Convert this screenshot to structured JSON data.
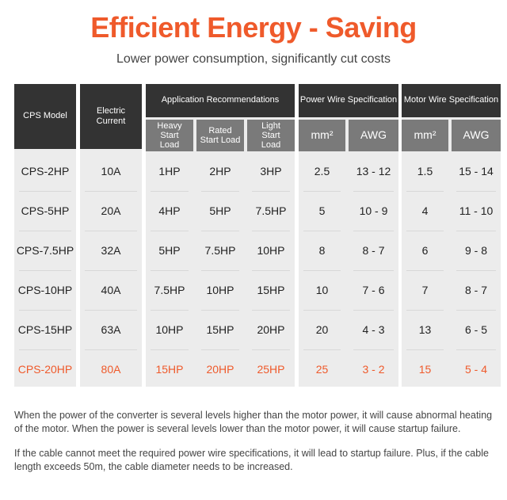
{
  "header": {
    "title": "Efficient Energy - Saving",
    "subtitle": "Lower power consumption, significantly cut costs"
  },
  "table": {
    "headers": {
      "model": "CPS Model",
      "current": "Electric Current",
      "application": "Application Recommendations",
      "power_wire": "Power Wire Specification",
      "motor_wire": "Motor Wire Specification"
    },
    "subheaders": {
      "heavy": "Heavy Start Load",
      "rated": "Rated Start Load",
      "light": "Light Start Load",
      "power_mm": "mm²",
      "power_awg": "AWG",
      "motor_mm": "mm²",
      "motor_awg": "AWG"
    },
    "rows": [
      [
        "CPS-2HP",
        "10A",
        "1HP",
        "2HP",
        "3HP",
        "2.5",
        "13 - 12",
        "1.5",
        "15 - 14"
      ],
      [
        "CPS-5HP",
        "20A",
        "4HP",
        "5HP",
        "7.5HP",
        "5",
        "10 - 9",
        "4",
        "11 - 10"
      ],
      [
        "CPS-7.5HP",
        "32A",
        "5HP",
        "7.5HP",
        "10HP",
        "8",
        "8 - 7",
        "6",
        "9 - 8"
      ],
      [
        "CPS-10HP",
        "40A",
        "7.5HP",
        "10HP",
        "15HP",
        "10",
        "7 - 6",
        "7",
        "8 - 7"
      ],
      [
        "CPS-15HP",
        "63A",
        "10HP",
        "15HP",
        "20HP",
        "20",
        "4 - 3",
        "13",
        "6 - 5"
      ],
      [
        "CPS-20HP",
        "80A",
        "15HP",
        "20HP",
        "25HP",
        "25",
        "3 - 2",
        "15",
        "5 - 4"
      ]
    ],
    "highlight_color": "#ef5a2b"
  },
  "notes": [
    "When the power of the converter is several levels higher than the motor power, it will cause abnormal heating of the motor. When the power is several levels lower than the motor power, it will cause startup failure.",
    "If the cable cannot meet the required power wire specifications, it will lead to startup failure. Plus, if the cable length exceeds 50m, the cable diameter needs to be increased."
  ]
}
